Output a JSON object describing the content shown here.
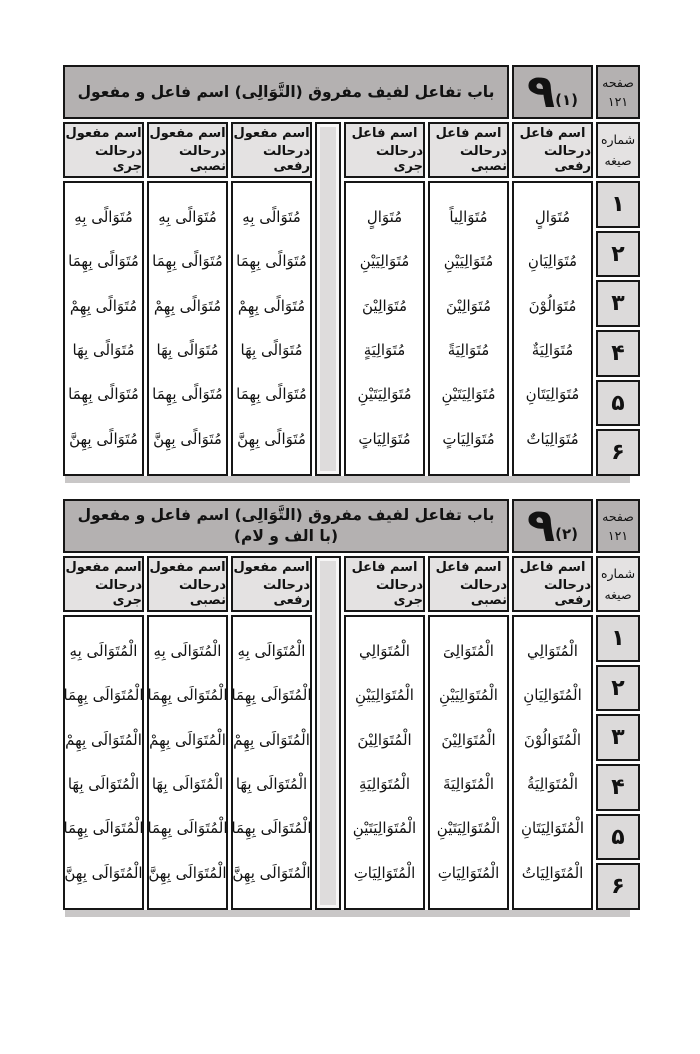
{
  "colors": {
    "title_bar": "#b4b1b1",
    "header_cell": "#e4e2e2",
    "number_cell": "#dcdada",
    "body_cell": "#ffffff",
    "border": "#161616",
    "shadow": "#c9c7c7"
  },
  "tables": [
    {
      "page_label": {
        "line1": "صفحه",
        "line2": "١٢١"
      },
      "mark": {
        "big": "٩",
        "small": "(١)"
      },
      "title": "باب تفاعل لفيف مفروق (التَّوَالِى) اسم فاعل و مفعول",
      "serial_header": {
        "line1": "شماره",
        "line2": "صيغه"
      },
      "row_numbers": [
        "١",
        "٢",
        "٣",
        "۴",
        "۵",
        "۶"
      ],
      "columns": [
        {
          "group": "اسم فاعل",
          "case": "درحالت رفعی",
          "words": [
            "مُتَوَالٍ",
            "مُتَوَالِيَانِ",
            "مُتَوَالُوْنَ",
            "مُتَوَالِيَةٌ",
            "مُتَوَالِيَتَانِ",
            "مُتَوَالِيَاتٌ"
          ]
        },
        {
          "group": "اسم فاعل",
          "case": "درحالت نصبی",
          "words": [
            "مُتَوَالِياً",
            "مُتَوَالِيَيْنِ",
            "مُتَوَالِيْنَ",
            "مُتَوَالِيَةً",
            "مُتَوَالِيَتَيْنِ",
            "مُتَوَالِيَاتٍ"
          ]
        },
        {
          "group": "اسم فاعل",
          "case": "درحالت جری",
          "words": [
            "مُتَوَالٍ",
            "مُتَوَالِيَيْنِ",
            "مُتَوَالِيْنَ",
            "مُتَوَالِيَةٍ",
            "مُتَوَالِيَتَيْنِ",
            "مُتَوَالِيَاتٍ"
          ]
        },
        {
          "group": "اسم مفعول",
          "case": "درحالت رفعی",
          "words": [
            "مُتَوَالًى بِهِ",
            "مُتَوَالًى بِهِمَا",
            "مُتَوَالًى بِهِمْ",
            "مُتَوَالًى بِهَا",
            "مُتَوَالًى بِهِمَا",
            "مُتَوَالًى بِهِنَّ"
          ]
        },
        {
          "group": "اسم مفعول",
          "case": "درحالت نصبی",
          "words": [
            "مُتَوَالًى بِهِ",
            "مُتَوَالًى بِهِمَا",
            "مُتَوَالًى بِهِمْ",
            "مُتَوَالًى بِهَا",
            "مُتَوَالًى بِهِمَا",
            "مُتَوَالًى بِهِنَّ"
          ]
        },
        {
          "group": "اسم مفعول",
          "case": "درحالت جری",
          "words": [
            "مُتَوَالًى بِهِ",
            "مُتَوَالًى بِهِمَا",
            "مُتَوَالًى بِهِمْ",
            "مُتَوَالًى بِهَا",
            "مُتَوَالًى بِهِمَا",
            "مُتَوَالًى بِهِنَّ"
          ]
        }
      ]
    },
    {
      "page_label": {
        "line1": "صفحه",
        "line2": "١٢١"
      },
      "mark": {
        "big": "٩",
        "small": "(٢)"
      },
      "title": "باب تفاعل لفيف مفروق (التَّوَالِى) اسم فاعل و مفعول (با الف و لام)",
      "serial_header": {
        "line1": "شماره",
        "line2": "صيغه"
      },
      "row_numbers": [
        "١",
        "٢",
        "٣",
        "۴",
        "۵",
        "۶"
      ],
      "columns": [
        {
          "group": "اسم فاعل",
          "case": "درحالت رفعی",
          "words": [
            "الْمُتَوَالِي",
            "الْمُتَوَالِيَانِ",
            "الْمُتَوَالُوْنَ",
            "الْمُتَوَالِيَةُ",
            "الْمُتَوَالِيَتَانِ",
            "الْمُتَوَالِيَاتُ"
          ]
        },
        {
          "group": "اسم فاعل",
          "case": "درحالت نصبی",
          "words": [
            "الْمُتَوَالِىَ",
            "الْمُتَوَالِيَيْنِ",
            "الْمُتَوَالِيْنَ",
            "الْمُتَوَالِيَةَ",
            "الْمُتَوَالِيَتَيْنِ",
            "الْمُتَوَالِيَاتِ"
          ]
        },
        {
          "group": "اسم فاعل",
          "case": "درحالت جری",
          "words": [
            "الْمُتَوَالِي",
            "الْمُتَوَالِيَيْنِ",
            "الْمُتَوَالِيْنَ",
            "الْمُتَوَالِيَةِ",
            "الْمُتَوَالِيَتَيْنِ",
            "الْمُتَوَالِيَاتِ"
          ]
        },
        {
          "group": "اسم مفعول",
          "case": "درحالت رفعی",
          "words": [
            "الْمُتَوَالَى بِهِ",
            "الْمُتَوَالَى بِهِمَا",
            "الْمُتَوَالَى بِهِمْ",
            "الْمُتَوَالَى بِهَا",
            "الْمُتَوَالَى بِهِمَا",
            "الْمُتَوَالَى بِهِنَّ"
          ]
        },
        {
          "group": "اسم مفعول",
          "case": "درحالت نصبی",
          "words": [
            "الْمُتَوَالَى بِهِ",
            "الْمُتَوَالَى بِهِمَا",
            "الْمُتَوَالَى بِهِمْ",
            "الْمُتَوَالَى بِهَا",
            "الْمُتَوَالَى بِهِمَا",
            "الْمُتَوَالَى بِهِنَّ"
          ]
        },
        {
          "group": "اسم مفعول",
          "case": "درحالت جری",
          "words": [
            "الْمُتَوَالَى بِهِ",
            "الْمُتَوَالَى بِهِمَا",
            "الْمُتَوَالَى بِهِمْ",
            "الْمُتَوَالَى بِهَا",
            "الْمُتَوَالَى بِهِمَا",
            "الْمُتَوَالَى بِهِنَّ"
          ]
        }
      ]
    }
  ]
}
